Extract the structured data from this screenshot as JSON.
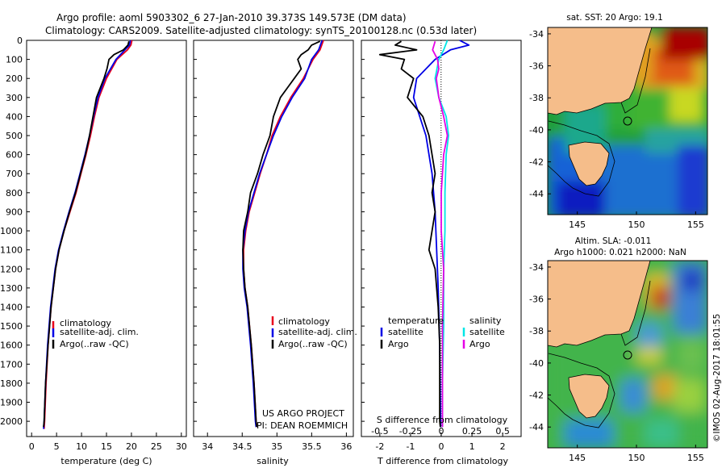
{
  "header": {
    "line1": "Argo profile: aoml 5903302_6 27-Jan-2010 39.373S 149.573E (DM data)",
    "line2": "Climatology: CARS2009. Satellite-adjusted climatology: synTS_20100128.nc (0.53d later)"
  },
  "credits": {
    "project": "US ARGO PROJECT",
    "pi": "PI: DEAN ROEMMICH"
  },
  "side_stamp": "©IMOS 02-Aug-2017 18:01:55",
  "colors": {
    "climatology": "#e8001c",
    "satellite": "#0000e6",
    "argo": "#000000",
    "sal_satellite": "#00e6e6",
    "sal_argo": "#e600e6"
  },
  "maps": [
    {
      "title": "sat. SST: 20 Argo: 19.1",
      "ytick_labels": [
        "-34",
        "-36",
        "-38",
        "-40",
        "-42",
        "-44"
      ],
      "xtick_labels": [
        "145",
        "150",
        "155"
      ]
    },
    {
      "title_line1": "Altim. SLA: -0.011",
      "title_line2": "Argo h1000: 0.021 h2000: NaN",
      "ytick_labels": [
        "-34",
        "-36",
        "-38",
        "-40",
        "-42",
        "-44"
      ],
      "xtick_labels": [
        "145",
        "150",
        "155"
      ]
    }
  ],
  "chart_data": [
    {
      "type": "line",
      "xlabel": "temperature (deg C)",
      "xlim": [
        -1,
        31
      ],
      "ylim": [
        2080,
        0
      ],
      "xticks": [
        0,
        5,
        10,
        15,
        20,
        25,
        30
      ],
      "yticks": [
        0,
        100,
        200,
        300,
        400,
        500,
        600,
        700,
        800,
        900,
        1000,
        1100,
        1200,
        1300,
        1400,
        1500,
        1600,
        1700,
        1800,
        1900,
        2000
      ],
      "legend": [
        "climatology",
        "satellite-adj. clim.",
        "Argo(..raw -QC)"
      ],
      "series": [
        {
          "name": "climatology",
          "depth": [
            0,
            25,
            50,
            100,
            200,
            300,
            400,
            500,
            600,
            700,
            800,
            900,
            1000,
            1100,
            1200,
            1400,
            1600,
            1800,
            2000,
            2040
          ],
          "values": [
            20.1,
            19.9,
            19.2,
            17.1,
            15.0,
            13.5,
            12.6,
            11.8,
            10.9,
            9.9,
            8.9,
            7.7,
            6.5,
            5.5,
            4.8,
            3.9,
            3.3,
            2.9,
            2.6,
            2.5
          ]
        },
        {
          "name": "satellite-adj. clim.",
          "depth": [
            0,
            25,
            50,
            100,
            200,
            300,
            400,
            500,
            600,
            700,
            800,
            900,
            1000,
            1100,
            1200,
            1400,
            1600,
            1800,
            2000,
            2040
          ],
          "values": [
            19.8,
            19.6,
            18.7,
            16.9,
            14.7,
            13.3,
            12.4,
            11.6,
            10.7,
            9.7,
            8.7,
            7.5,
            6.4,
            5.4,
            4.7,
            3.8,
            3.2,
            2.8,
            2.5,
            2.4
          ]
        },
        {
          "name": "Argo(..raw -QC)",
          "depth": [
            5,
            25,
            50,
            75,
            100,
            150,
            200,
            300,
            400,
            500,
            600,
            700,
            800,
            900,
            1000,
            1100,
            1200,
            1400,
            1600,
            1800,
            2000,
            2030
          ],
          "values": [
            19.5,
            19.3,
            18.4,
            16.5,
            15.5,
            15.1,
            14.5,
            13.0,
            12.3,
            11.6,
            10.8,
            9.8,
            8.8,
            7.6,
            6.5,
            5.5,
            4.8,
            3.9,
            3.3,
            2.8,
            2.5,
            2.4
          ]
        }
      ]
    },
    {
      "type": "line",
      "xlabel": "salinity",
      "xlim": [
        33.8,
        36.1
      ],
      "ylim": [
        2080,
        0
      ],
      "xticks": [
        34,
        34.5,
        35,
        35.5,
        36
      ],
      "legend": [
        "climatology",
        "satellite-adj. clim.",
        "Argo(..raw -QC)"
      ],
      "series": [
        {
          "name": "climatology",
          "depth": [
            0,
            50,
            100,
            200,
            300,
            400,
            500,
            600,
            700,
            800,
            900,
            1000,
            1100,
            1200,
            1300,
            1400,
            1600,
            1800,
            2000,
            2030
          ],
          "values": [
            35.67,
            35.62,
            35.52,
            35.38,
            35.2,
            35.05,
            34.93,
            34.85,
            34.76,
            34.68,
            34.6,
            34.55,
            34.52,
            34.52,
            34.54,
            34.58,
            34.63,
            34.67,
            34.7,
            34.71
          ]
        },
        {
          "name": "satellite-adj. clim.",
          "depth": [
            0,
            50,
            100,
            200,
            300,
            400,
            500,
            600,
            700,
            800,
            900,
            1000,
            1100,
            1200,
            1300,
            1400,
            1600,
            1800,
            2000,
            2030
          ],
          "values": [
            35.65,
            35.6,
            35.5,
            35.4,
            35.22,
            35.07,
            34.95,
            34.85,
            34.75,
            34.67,
            34.59,
            34.54,
            34.51,
            34.51,
            34.53,
            34.57,
            34.62,
            34.66,
            34.69,
            34.7
          ]
        },
        {
          "name": "Argo(..raw -QC)",
          "depth": [
            5,
            25,
            50,
            75,
            100,
            150,
            200,
            250,
            300,
            400,
            500,
            600,
            700,
            800,
            900,
            1000,
            1100,
            1200,
            1300,
            1400,
            1600,
            1800,
            2000,
            2030
          ],
          "values": [
            35.62,
            35.5,
            35.45,
            35.35,
            35.3,
            35.35,
            35.25,
            35.15,
            35.05,
            34.95,
            34.9,
            34.8,
            34.72,
            34.62,
            34.58,
            34.52,
            34.51,
            34.52,
            34.54,
            34.58,
            34.63,
            34.67,
            34.7,
            34.71
          ]
        }
      ]
    },
    {
      "type": "line",
      "xlabel": "T difference from climatology",
      "xlabel_top": "S difference from climatology",
      "xlim": [
        -2.6,
        2.6
      ],
      "ylim": [
        2080,
        0
      ],
      "xticks": [
        -2,
        -1,
        0,
        1,
        2
      ],
      "xticks_top": [
        -0.5,
        -0.25,
        0,
        0.25,
        0.5
      ],
      "legend_title_t": "temperature",
      "legend_title_s": "salinity",
      "legend": [
        "satellite",
        "Argo",
        "satellite",
        "Argo"
      ],
      "series": [
        {
          "name": "satellite",
          "depth": [
            0,
            25,
            50,
            100,
            150,
            200,
            300,
            400,
            500,
            700,
            900,
            1100,
            1300,
            1600,
            2000,
            2030
          ],
          "values": [
            0.6,
            0.9,
            0.3,
            -0.2,
            -0.5,
            -0.8,
            -0.9,
            -0.7,
            -0.5,
            -0.3,
            -0.2,
            -0.15,
            -0.1,
            -0.05,
            -0.02,
            -0.02
          ]
        },
        {
          "name": "Argo",
          "depth": [
            5,
            25,
            50,
            75,
            100,
            150,
            200,
            300,
            400,
            500,
            600,
            700,
            800,
            900,
            1000,
            1100,
            1200,
            1400,
            1600,
            1800,
            2000,
            2030
          ],
          "values": [
            -1.3,
            -1.5,
            -0.8,
            -2.0,
            -1.2,
            -1.3,
            -0.9,
            -1.1,
            -0.6,
            -0.4,
            -0.3,
            -0.2,
            -0.3,
            -0.2,
            -0.3,
            -0.4,
            -0.2,
            -0.1,
            -0.05,
            -0.05,
            -0.05,
            -0.03
          ]
        },
        {
          "name": "salinity satellite",
          "depth": [
            0,
            50,
            100,
            200,
            300,
            400,
            500,
            600,
            800,
            1000,
            1200,
            1500,
            1800,
            2030
          ],
          "values": [
            0.05,
            0.02,
            -0.02,
            -0.05,
            -0.02,
            0.04,
            0.06,
            0.04,
            0.03,
            0.03,
            0.02,
            0.02,
            0.01,
            0.01
          ]
        },
        {
          "name": "salinity Argo",
          "depth": [
            5,
            50,
            100,
            150,
            200,
            300,
            400,
            500,
            600,
            800,
            1000,
            1200,
            1500,
            1800,
            2030
          ],
          "values": [
            -0.05,
            -0.07,
            -0.03,
            -0.02,
            -0.04,
            -0.02,
            0.02,
            0.05,
            0.02,
            0.0,
            0.0,
            0.02,
            0.01,
            0.01,
            0.01
          ]
        }
      ]
    }
  ]
}
